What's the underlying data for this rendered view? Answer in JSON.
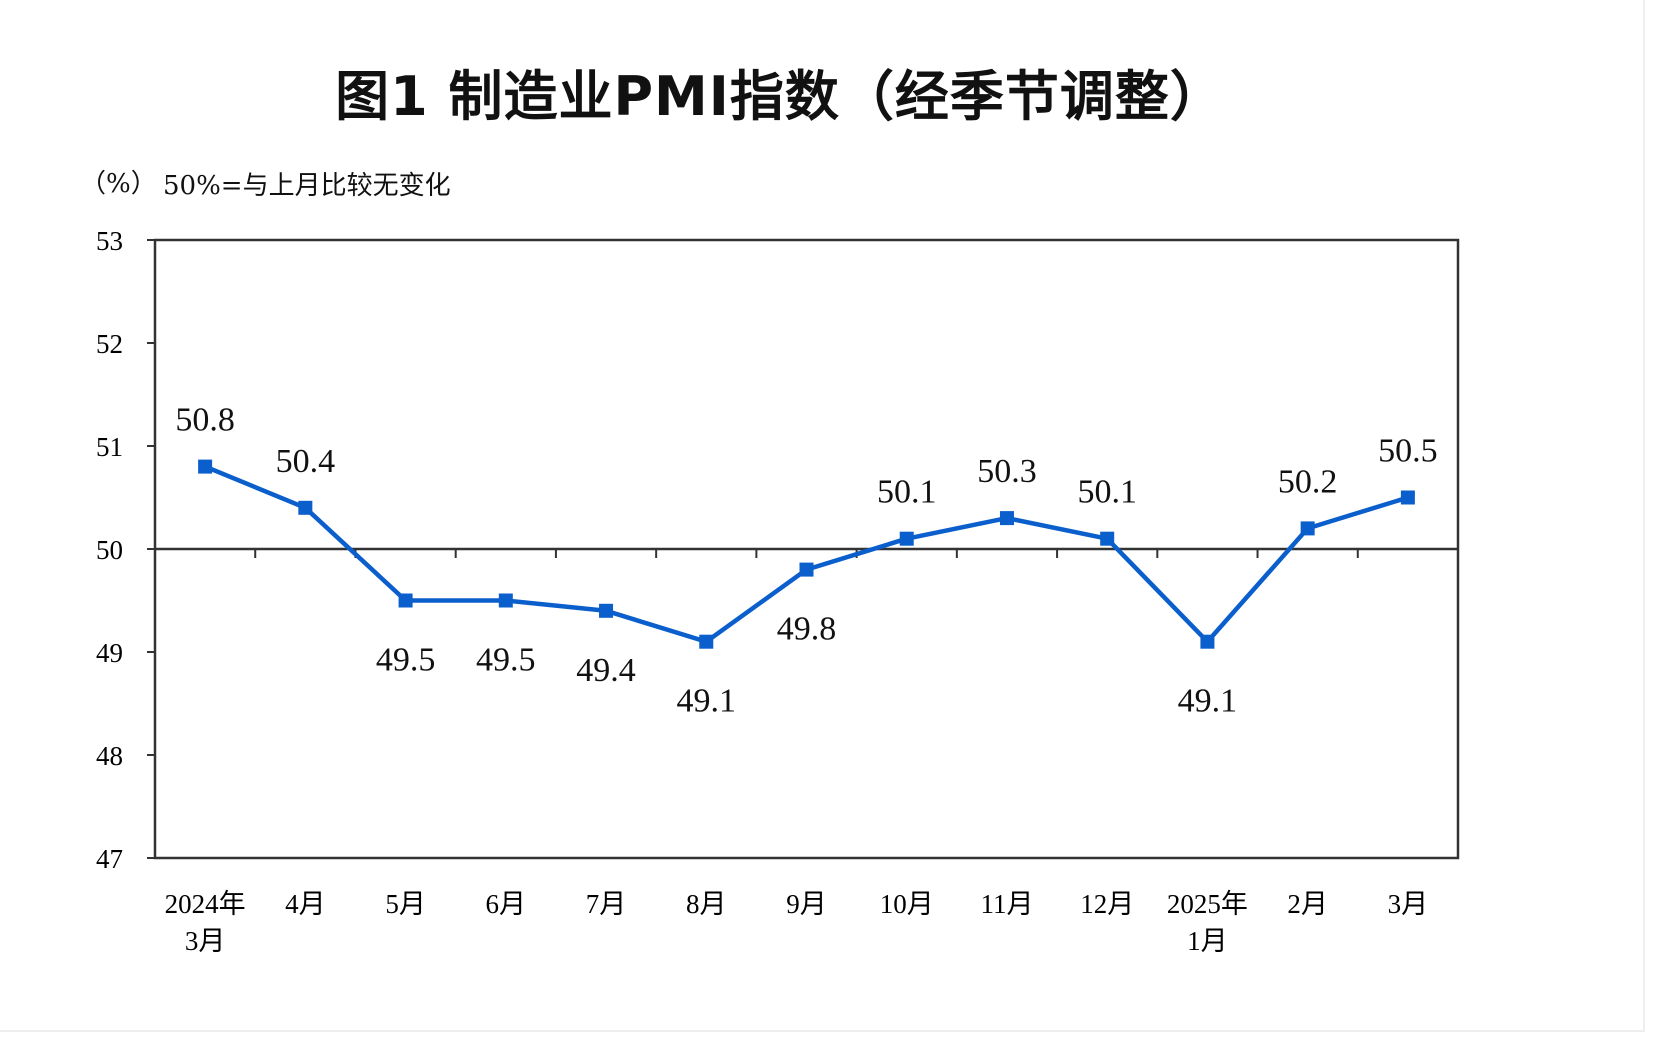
{
  "chart_data": {
    "type": "line",
    "title": "图1  制造业PMI指数（经季节调整）",
    "ylabel": "（%）",
    "annotation": "50%=与上月比较无变化",
    "categories": [
      [
        "2024年",
        "3月"
      ],
      [
        "4月"
      ],
      [
        "5月"
      ],
      [
        "6月"
      ],
      [
        "7月"
      ],
      [
        "8月"
      ],
      [
        "9月"
      ],
      [
        "10月"
      ],
      [
        "11月"
      ],
      [
        "12月"
      ],
      [
        "2025年",
        "1月"
      ],
      [
        "2月"
      ],
      [
        "3月"
      ]
    ],
    "values": [
      50.8,
      50.4,
      49.5,
      49.5,
      49.4,
      49.1,
      49.8,
      50.1,
      50.3,
      50.1,
      49.1,
      50.2,
      50.5
    ],
    "data_labels": [
      "50.8",
      "50.4",
      "49.5",
      "49.5",
      "49.4",
      "49.1",
      "49.8",
      "50.1",
      "50.3",
      "50.1",
      "49.1",
      "50.2",
      "50.5"
    ],
    "ylim": [
      47,
      53
    ],
    "yticks": [
      "47",
      "48",
      "49",
      "50",
      "51",
      "52",
      "53"
    ],
    "reference_line": 50,
    "grid": false,
    "marker": "square",
    "colors": {
      "series": "#0a5fcc",
      "axis": "#333333"
    }
  }
}
